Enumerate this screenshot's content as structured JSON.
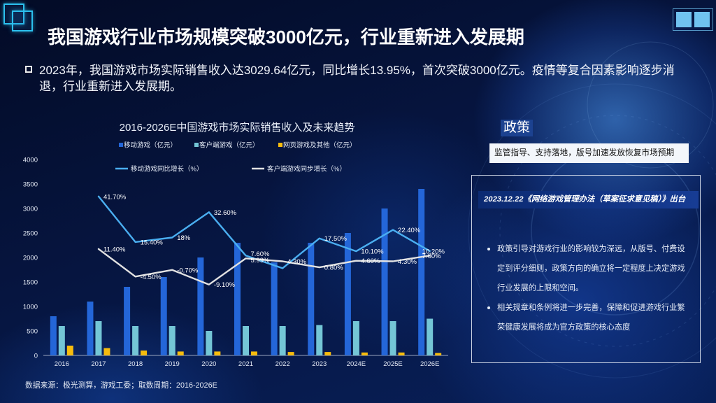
{
  "slide": {
    "title": "我国游戏行业市场规模突破3000亿元，行业重新进入发展期",
    "bullet": "2023年，我国游戏市场实际销售收入达3029.64亿元，同比增长13.95%，首次突破3000亿元。疫情等复合因素影响逐步消退，行业重新进入发展期。",
    "source": "数据来源：极光测算，游戏工委；取数周期：2016-2026E"
  },
  "policy": {
    "tag": "政策",
    "summary": "监管指导、支持落地，版号加速发放恢复市场预期",
    "headline": "2023.12.22《网络游戏管理办法（草案征求意见稿）》出台",
    "points": [
      "政策引导对游戏行业的影响较为深远，从版号、付费设定到评分细则，政策方向的确立将一定程度上决定游戏行业发展的上限和空间。",
      "相关规章和条例将进一步完善，保障和促进游戏行业繁荣健康发展将成为官方政策的核心态度"
    ]
  },
  "chart_data": {
    "type": "bar",
    "title": "2016-2026E中国游戏市场实际销售收入及未来趋势",
    "xlabel": "",
    "ylabel": "",
    "categories": [
      "2016",
      "2017",
      "2018",
      "2019",
      "2020",
      "2021",
      "2022",
      "2023",
      "2024E",
      "2025E",
      "2026E"
    ],
    "ylim": [
      0,
      4000
    ],
    "yticks": [
      0,
      500,
      1000,
      1500,
      2000,
      2500,
      3000,
      3500,
      4000
    ],
    "y2lim": [
      -50,
      63
    ],
    "grid": false,
    "legend_position": "top",
    "series": [
      {
        "name": "移动游戏（亿元）",
        "type": "bar",
        "axis": "left",
        "color": "#2466d8",
        "values": [
          800,
          1100,
          1400,
          1600,
          2000,
          2300,
          1900,
          2300,
          2500,
          3000,
          3400
        ]
      },
      {
        "name": "客户端游戏（亿元）",
        "type": "bar",
        "axis": "left",
        "color": "#74c6d6",
        "values": [
          600,
          700,
          600,
          600,
          500,
          600,
          600,
          620,
          700,
          700,
          750
        ]
      },
      {
        "name": "网页游戏及其他（亿元）",
        "type": "bar",
        "axis": "left",
        "color": "#f7bc0d",
        "values": [
          200,
          150,
          100,
          80,
          80,
          80,
          70,
          70,
          60,
          60,
          50
        ]
      },
      {
        "name": "移动游戏同比增长（%）",
        "type": "line",
        "axis": "right",
        "color": "#4aaef0",
        "values": [
          null,
          41.7,
          15.4,
          18,
          32.6,
          7.6,
          0.3,
          17.5,
          10.1,
          22.4,
          10.2
        ],
        "labels": [
          null,
          "41.70%",
          "15.40%",
          "18%",
          "32.60%",
          "7.60%",
          null,
          "17.50%",
          "10.10%",
          "22.40%",
          "10.20%"
        ]
      },
      {
        "name": "客户端游戏同步增长（%）",
        "type": "line",
        "axis": "right",
        "color": "#e2e2e2",
        "values": [
          null,
          11.4,
          -4.5,
          -0.7,
          -9.1,
          5.99,
          4.3,
          0.8,
          4.6,
          4.3,
          7.6
        ],
        "labels": [
          null,
          "11.40%",
          "-4.50%",
          "-0.70%",
          "-9.10%",
          "5.99%",
          "4.30%",
          "0.80%",
          "4.60%",
          "4.30%",
          "7.60%"
        ]
      }
    ]
  }
}
